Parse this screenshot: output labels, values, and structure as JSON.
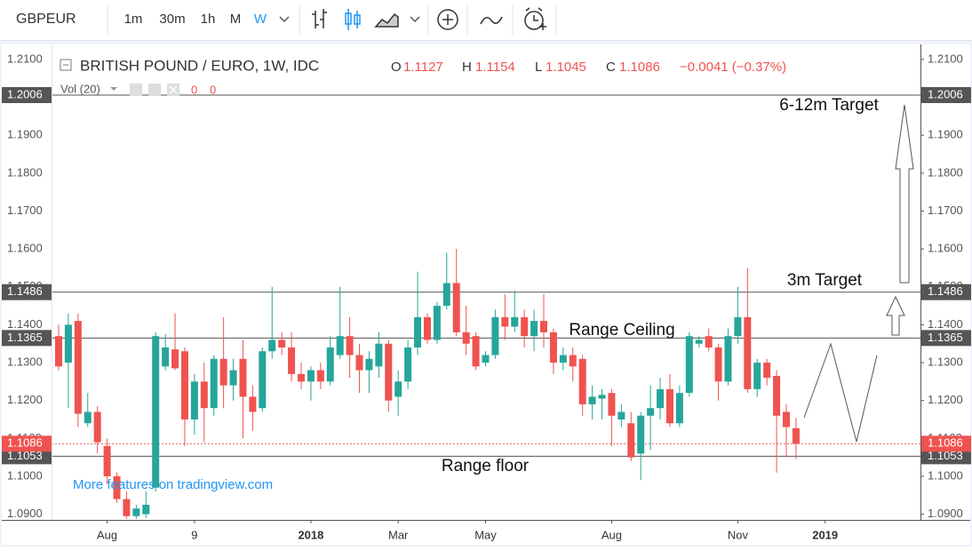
{
  "toolbar": {
    "symbol": "GBPEUR",
    "intervals": [
      "1m",
      "30m",
      "1h",
      "M",
      "W"
    ]
  },
  "chart_data": {
    "type": "candlestick",
    "title": "BRITISH POUND / EURO, 1W, IDC",
    "ohlc_keys": [
      "O",
      "H",
      "L",
      "C"
    ],
    "change": "−0.0041 (−0.37%)",
    "volume_label": "Vol (20)",
    "volume_values": [
      "0",
      "0"
    ],
    "categories": [
      null,
      null,
      null,
      null,
      null,
      "Aug",
      null,
      null,
      null,
      null,
      null,
      null,
      null,
      null,
      "9",
      null,
      null,
      null,
      null,
      null,
      null,
      null,
      null,
      null,
      null,
      null,
      "2018",
      null,
      null,
      null,
      null,
      null,
      null,
      null,
      null,
      "Mar",
      null,
      null,
      null,
      null,
      null,
      null,
      null,
      null,
      "May",
      null,
      null,
      null,
      null,
      null,
      null,
      null,
      null,
      null,
      null,
      null,
      null,
      "Aug",
      null,
      null,
      null,
      null,
      null,
      null,
      null,
      null,
      null,
      null,
      null,
      null,
      "Nov",
      null,
      null,
      null,
      null,
      null,
      null,
      null,
      null,
      "2019",
      null,
      null,
      null,
      null,
      null,
      null,
      null,
      null,
      null
    ],
    "open": [
      1.137,
      1.13,
      1.141,
      1.114,
      1.117,
      1.108,
      1.1,
      1.094,
      1.0895,
      1.09,
      1.097,
      1.129,
      1.1335,
      1.133,
      1.115,
      1.125,
      1.118,
      1.131,
      1.124,
      1.131,
      1.121,
      1.118,
      1.133,
      1.136,
      1.134,
      1.127,
      1.125,
      1.128,
      1.125,
      1.132,
      1.137,
      1.132,
      1.128,
      1.129,
      1.135,
      1.121,
      1.125,
      1.134,
      1.142,
      1.136,
      1.145,
      1.151,
      1.138,
      1.137,
      1.13,
      1.132,
      1.142,
      1.1395,
      1.142,
      1.137,
      1.141,
      1.138,
      1.13,
      1.132,
      1.131,
      1.119,
      1.1205,
      1.122,
      1.115,
      1.114,
      1.106,
      1.116,
      1.118,
      1.123,
      1.114,
      1.122,
      1.135,
      1.137,
      1.134,
      1.125,
      1.137,
      1.142,
      1.123,
      1.13,
      1.1265,
      1.117,
      1.1127,
      null,
      null,
      null,
      null,
      null,
      null,
      null,
      null,
      null,
      null,
      null,
      null
    ],
    "high": [
      1.14,
      1.143,
      1.143,
      1.122,
      1.1185,
      1.11,
      1.101,
      1.096,
      1.0925,
      1.096,
      1.138,
      1.1375,
      1.143,
      1.134,
      1.127,
      1.13,
      1.132,
      1.142,
      1.131,
      1.136,
      1.124,
      1.134,
      1.15,
      1.138,
      1.138,
      1.13,
      1.129,
      1.13,
      1.137,
      1.15,
      1.142,
      1.135,
      1.133,
      1.138,
      1.136,
      1.128,
      1.136,
      1.154,
      1.143,
      1.146,
      1.159,
      1.16,
      1.145,
      1.138,
      1.133,
      1.144,
      1.148,
      1.149,
      1.144,
      1.144,
      1.148,
      1.139,
      1.134,
      1.134,
      1.132,
      1.124,
      1.123,
      1.123,
      1.119,
      1.117,
      1.117,
      1.124,
      1.126,
      1.127,
      1.124,
      1.138,
      1.137,
      1.139,
      1.135,
      1.139,
      1.15,
      1.155,
      1.131,
      1.131,
      1.128,
      1.119,
      1.1154,
      null,
      null,
      null,
      null,
      null,
      null,
      null,
      null,
      null,
      null,
      null,
      null
    ],
    "low": [
      1.128,
      1.118,
      1.113,
      1.113,
      1.106,
      1.098,
      1.093,
      1.0888,
      1.0888,
      1.089,
      1.096,
      1.128,
      1.128,
      1.108,
      1.111,
      1.109,
      1.116,
      1.118,
      1.12,
      1.11,
      1.112,
      1.117,
      1.131,
      1.132,
      1.125,
      1.123,
      1.12,
      1.123,
      1.124,
      1.131,
      1.126,
      1.122,
      1.122,
      1.126,
      1.117,
      1.116,
      1.123,
      1.132,
      1.135,
      1.135,
      1.144,
      1.137,
      1.132,
      1.128,
      1.129,
      1.131,
      1.136,
      1.138,
      1.134,
      1.133,
      1.134,
      1.127,
      1.128,
      1.125,
      1.116,
      1.115,
      1.115,
      1.108,
      1.113,
      1.104,
      1.099,
      1.107,
      1.115,
      1.113,
      1.113,
      1.121,
      1.134,
      1.133,
      1.12,
      1.124,
      1.135,
      1.122,
      1.121,
      1.124,
      1.101,
      1.105,
      1.1045,
      null,
      null,
      null,
      null,
      null,
      null,
      null,
      null,
      null,
      null,
      null,
      null
    ],
    "close": [
      1.129,
      1.14,
      1.1165,
      1.117,
      1.109,
      1.1,
      1.094,
      1.0895,
      1.0915,
      1.0925,
      1.137,
      1.134,
      1.1285,
      1.115,
      1.125,
      1.118,
      1.131,
      1.124,
      1.128,
      1.121,
      1.117,
      1.133,
      1.136,
      1.134,
      1.127,
      1.125,
      1.128,
      1.125,
      1.134,
      1.137,
      1.132,
      1.128,
      1.131,
      1.135,
      1.12,
      1.125,
      1.134,
      1.142,
      1.136,
      1.145,
      1.151,
      1.138,
      1.135,
      1.129,
      1.132,
      1.142,
      1.1395,
      1.142,
      1.137,
      1.141,
      1.138,
      1.13,
      1.132,
      1.129,
      1.119,
      1.121,
      1.1215,
      1.116,
      1.117,
      1.105,
      1.116,
      1.118,
      1.123,
      1.114,
      1.122,
      1.137,
      1.136,
      1.134,
      1.125,
      1.137,
      1.142,
      1.123,
      1.13,
      1.126,
      1.116,
      1.113,
      1.1086,
      null,
      null,
      null,
      null,
      null,
      null,
      null,
      null,
      null,
      null,
      null,
      null
    ],
    "up_color": "#26a69a",
    "down_color": "#ef5350",
    "ylim": [
      1.0885,
      1.2135
    ],
    "yticks": [
      {
        "value": 1.09,
        "label": "1.0900"
      },
      {
        "value": 1.1,
        "label": "1.1000"
      },
      {
        "value": 1.11,
        "label": "1.1100"
      },
      {
        "value": 1.12,
        "label": "1.1200"
      },
      {
        "value": 1.13,
        "label": "1.1300"
      },
      {
        "value": 1.14,
        "label": "1.1400"
      },
      {
        "value": 1.15,
        "label": "1.1500"
      },
      {
        "value": 1.16,
        "label": "1.1600"
      },
      {
        "value": 1.17,
        "label": "1.1700"
      },
      {
        "value": 1.18,
        "label": "1.1800"
      },
      {
        "value": 1.19,
        "label": "1.1900"
      },
      {
        "value": 1.2,
        "label": "1.2000"
      },
      {
        "value": 1.21,
        "label": "1.2100"
      }
    ],
    "levels": [
      1.2006,
      1.1486,
      1.1365,
      1.1053
    ],
    "level_color": "#555555",
    "annotations": [
      "6-12m Target",
      "3m Target",
      "Range Ceiling",
      "Range floor"
    ],
    "watermark": "More features on tradingview.com"
  }
}
